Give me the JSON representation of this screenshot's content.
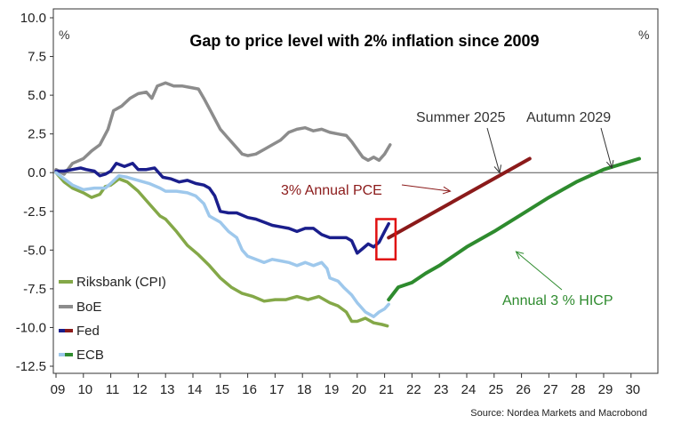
{
  "chart_data": {
    "type": "line",
    "title": "Gap to price level with 2% inflation since 2009",
    "ylabel_left": "%",
    "ylabel_right": "%",
    "source": "Source: Nordea Markets and Macrobond",
    "ylim": [
      -12.5,
      10.0
    ],
    "y_ticks": [
      "10.0",
      "7.5",
      "5.0",
      "2.5",
      "0.0",
      "-2.5",
      "-5.0",
      "-7.5",
      "-10.0",
      "-12.5"
    ],
    "x_range": [
      2009,
      2030.3
    ],
    "x_ticks": [
      "09",
      "10",
      "11",
      "12",
      "13",
      "14",
      "15",
      "16",
      "17",
      "18",
      "19",
      "20",
      "21",
      "22",
      "23",
      "24",
      "25",
      "26",
      "27",
      "28",
      "29",
      "30"
    ],
    "colors": {
      "riksbank": "#84a848",
      "boe": "#8c8c8c",
      "fed": "#1a1e8c",
      "ecb": "#9ec8ec",
      "fed_projection": "#8b1a1a",
      "ecb_projection": "#2e8b2e",
      "highlight_box": "#e01010",
      "zero_line": "#555555"
    },
    "series": [
      {
        "name": "Riksbank (CPI)",
        "color_key": "riksbank",
        "points": [
          [
            2009.0,
            0.0
          ],
          [
            2009.3,
            -0.6
          ],
          [
            2009.6,
            -1.0
          ],
          [
            2010.0,
            -1.3
          ],
          [
            2010.3,
            -1.6
          ],
          [
            2010.6,
            -1.4
          ],
          [
            2010.8,
            -0.9
          ],
          [
            2011.0,
            -0.8
          ],
          [
            2011.3,
            -0.4
          ],
          [
            2011.6,
            -0.6
          ],
          [
            2012.0,
            -1.2
          ],
          [
            2012.4,
            -2.0
          ],
          [
            2012.8,
            -2.8
          ],
          [
            2013.0,
            -3.0
          ],
          [
            2013.4,
            -3.8
          ],
          [
            2013.8,
            -4.7
          ],
          [
            2014.2,
            -5.3
          ],
          [
            2014.6,
            -6.0
          ],
          [
            2015.0,
            -6.8
          ],
          [
            2015.4,
            -7.4
          ],
          [
            2015.8,
            -7.8
          ],
          [
            2016.2,
            -8.0
          ],
          [
            2016.6,
            -8.3
          ],
          [
            2017.0,
            -8.2
          ],
          [
            2017.4,
            -8.2
          ],
          [
            2017.8,
            -8.0
          ],
          [
            2018.2,
            -8.2
          ],
          [
            2018.6,
            -8.0
          ],
          [
            2019.0,
            -8.4
          ],
          [
            2019.3,
            -8.6
          ],
          [
            2019.6,
            -9.0
          ],
          [
            2019.8,
            -9.6
          ],
          [
            2020.0,
            -9.6
          ],
          [
            2020.3,
            -9.4
          ],
          [
            2020.6,
            -9.7
          ],
          [
            2020.9,
            -9.8
          ],
          [
            2021.1,
            -9.9
          ]
        ]
      },
      {
        "name": "BoE",
        "color_key": "boe",
        "points": [
          [
            2009.0,
            0.2
          ],
          [
            2009.3,
            -0.1
          ],
          [
            2009.6,
            0.6
          ],
          [
            2010.0,
            0.9
          ],
          [
            2010.3,
            1.4
          ],
          [
            2010.6,
            1.8
          ],
          [
            2010.9,
            2.8
          ],
          [
            2011.1,
            4.0
          ],
          [
            2011.4,
            4.3
          ],
          [
            2011.7,
            4.8
          ],
          [
            2012.0,
            5.1
          ],
          [
            2012.3,
            5.2
          ],
          [
            2012.5,
            4.8
          ],
          [
            2012.7,
            5.6
          ],
          [
            2013.0,
            5.8
          ],
          [
            2013.3,
            5.6
          ],
          [
            2013.6,
            5.6
          ],
          [
            2013.9,
            5.5
          ],
          [
            2014.2,
            5.4
          ],
          [
            2014.4,
            4.8
          ],
          [
            2014.7,
            3.8
          ],
          [
            2015.0,
            2.8
          ],
          [
            2015.3,
            2.2
          ],
          [
            2015.6,
            1.6
          ],
          [
            2015.8,
            1.2
          ],
          [
            2016.0,
            1.1
          ],
          [
            2016.3,
            1.2
          ],
          [
            2016.6,
            1.5
          ],
          [
            2016.9,
            1.8
          ],
          [
            2017.2,
            2.1
          ],
          [
            2017.5,
            2.6
          ],
          [
            2017.8,
            2.8
          ],
          [
            2018.1,
            2.9
          ],
          [
            2018.4,
            2.7
          ],
          [
            2018.7,
            2.8
          ],
          [
            2019.0,
            2.6
          ],
          [
            2019.3,
            2.5
          ],
          [
            2019.6,
            2.4
          ],
          [
            2019.8,
            2.0
          ],
          [
            2020.0,
            1.5
          ],
          [
            2020.2,
            1.0
          ],
          [
            2020.4,
            0.8
          ],
          [
            2020.6,
            1.0
          ],
          [
            2020.8,
            0.8
          ],
          [
            2021.0,
            1.2
          ],
          [
            2021.2,
            1.8
          ]
        ]
      },
      {
        "name": "Fed",
        "color_key": "fed",
        "points": [
          [
            2009.0,
            0.1
          ],
          [
            2009.3,
            0.1
          ],
          [
            2009.6,
            0.2
          ],
          [
            2009.9,
            0.3
          ],
          [
            2010.1,
            0.2
          ],
          [
            2010.4,
            0.1
          ],
          [
            2010.6,
            -0.2
          ],
          [
            2010.8,
            -0.1
          ],
          [
            2011.0,
            0.1
          ],
          [
            2011.2,
            0.6
          ],
          [
            2011.5,
            0.4
          ],
          [
            2011.8,
            0.6
          ],
          [
            2012.0,
            0.2
          ],
          [
            2012.3,
            0.2
          ],
          [
            2012.6,
            0.3
          ],
          [
            2012.9,
            -0.3
          ],
          [
            2013.2,
            -0.4
          ],
          [
            2013.5,
            -0.6
          ],
          [
            2013.8,
            -0.5
          ],
          [
            2014.1,
            -0.7
          ],
          [
            2014.4,
            -0.8
          ],
          [
            2014.6,
            -1.0
          ],
          [
            2014.8,
            -1.5
          ],
          [
            2015.0,
            -2.5
          ],
          [
            2015.3,
            -2.6
          ],
          [
            2015.6,
            -2.6
          ],
          [
            2016.0,
            -2.9
          ],
          [
            2016.3,
            -3.0
          ],
          [
            2016.6,
            -3.2
          ],
          [
            2016.9,
            -3.4
          ],
          [
            2017.2,
            -3.5
          ],
          [
            2017.5,
            -3.6
          ],
          [
            2017.8,
            -3.8
          ],
          [
            2018.1,
            -3.6
          ],
          [
            2018.4,
            -3.6
          ],
          [
            2018.7,
            -4.0
          ],
          [
            2019.0,
            -4.2
          ],
          [
            2019.3,
            -4.2
          ],
          [
            2019.6,
            -4.2
          ],
          [
            2019.8,
            -4.4
          ],
          [
            2020.0,
            -5.2
          ],
          [
            2020.2,
            -4.9
          ],
          [
            2020.4,
            -4.6
          ],
          [
            2020.6,
            -4.8
          ],
          [
            2020.8,
            -4.5
          ],
          [
            2021.0,
            -3.8
          ],
          [
            2021.15,
            -3.3
          ]
        ]
      },
      {
        "name": "ECB",
        "color_key": "ecb",
        "points": [
          [
            2009.0,
            0.0
          ],
          [
            2009.3,
            -0.4
          ],
          [
            2009.6,
            -0.8
          ],
          [
            2010.0,
            -1.1
          ],
          [
            2010.4,
            -1.0
          ],
          [
            2010.8,
            -1.0
          ],
          [
            2011.0,
            -0.7
          ],
          [
            2011.3,
            -0.2
          ],
          [
            2011.6,
            -0.3
          ],
          [
            2012.0,
            -0.5
          ],
          [
            2012.4,
            -0.7
          ],
          [
            2012.8,
            -1.0
          ],
          [
            2013.0,
            -1.2
          ],
          [
            2013.4,
            -1.2
          ],
          [
            2013.8,
            -1.3
          ],
          [
            2014.1,
            -1.5
          ],
          [
            2014.4,
            -2.0
          ],
          [
            2014.6,
            -2.8
          ],
          [
            2014.8,
            -3.0
          ],
          [
            2015.0,
            -3.2
          ],
          [
            2015.3,
            -3.8
          ],
          [
            2015.6,
            -4.2
          ],
          [
            2015.8,
            -5.0
          ],
          [
            2016.0,
            -5.4
          ],
          [
            2016.3,
            -5.6
          ],
          [
            2016.6,
            -5.8
          ],
          [
            2016.9,
            -5.6
          ],
          [
            2017.2,
            -5.7
          ],
          [
            2017.5,
            -5.8
          ],
          [
            2017.8,
            -6.0
          ],
          [
            2018.1,
            -5.8
          ],
          [
            2018.4,
            -6.0
          ],
          [
            2018.7,
            -5.8
          ],
          [
            2018.9,
            -6.2
          ],
          [
            2019.0,
            -6.8
          ],
          [
            2019.3,
            -7.0
          ],
          [
            2019.5,
            -7.4
          ],
          [
            2019.8,
            -7.9
          ],
          [
            2020.0,
            -8.4
          ],
          [
            2020.3,
            -9.0
          ],
          [
            2020.6,
            -9.3
          ],
          [
            2020.8,
            -9.0
          ],
          [
            2021.0,
            -8.8
          ],
          [
            2021.15,
            -8.5
          ]
        ]
      }
    ],
    "projections": [
      {
        "label": "3% Annual PCE",
        "color_key": "fed_projection",
        "points": [
          [
            2021.15,
            -4.2
          ],
          [
            2026.3,
            0.9
          ]
        ]
      },
      {
        "label": "Annual 3 % HICP",
        "color_key": "ecb_projection",
        "points": [
          [
            2021.15,
            -8.2
          ],
          [
            2021.5,
            -7.4
          ],
          [
            2022.0,
            -7.1
          ],
          [
            2022.5,
            -6.5
          ],
          [
            2023.0,
            -6.0
          ],
          [
            2024.0,
            -4.8
          ],
          [
            2025.0,
            -3.8
          ],
          [
            2026.0,
            -2.7
          ],
          [
            2027.0,
            -1.6
          ],
          [
            2028.0,
            -0.6
          ],
          [
            2029.0,
            0.2
          ],
          [
            2030.3,
            0.9
          ]
        ]
      }
    ],
    "legend": [
      "Riksbank (CPI)",
      "BoE",
      "Fed",
      "ECB"
    ],
    "annotations": {
      "summer": {
        "text": "Summer 2025",
        "points_to": [
          2025.2,
          0.0
        ]
      },
      "autumn": {
        "text": "Autumn 2029",
        "points_to": [
          2029.3,
          0.3
        ]
      },
      "pce": {
        "text": "3% Annual PCE",
        "points_to": [
          2023.4,
          -1.2
        ]
      },
      "hicp": {
        "text": "Annual 3 % HICP",
        "points_to": [
          2025.8,
          -5.1
        ]
      }
    },
    "highlight_box": {
      "x_range": [
        2020.7,
        2021.4
      ],
      "y_range": [
        -5.6,
        -3.0
      ]
    }
  }
}
